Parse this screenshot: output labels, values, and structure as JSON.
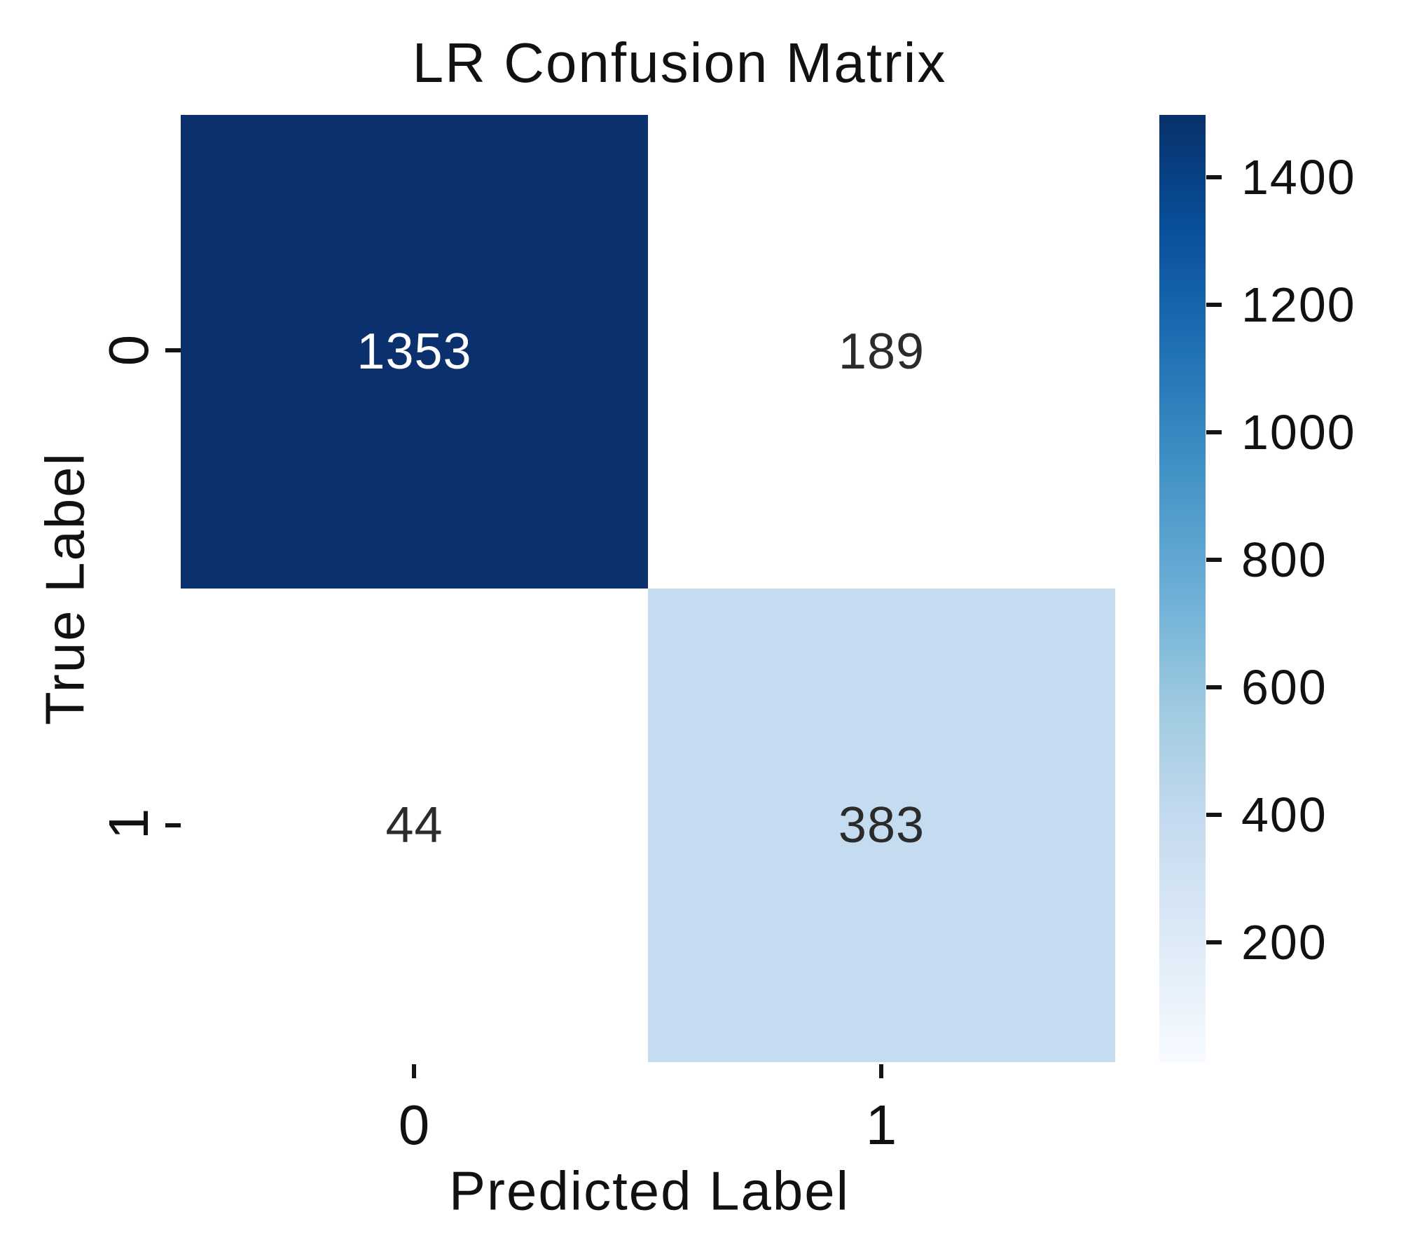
{
  "chart_data": {
    "type": "heatmap",
    "title": "LR Confusion Matrix",
    "xlabel": "Predicted Label",
    "ylabel": "True Label",
    "x_tick_labels": [
      "0",
      "1"
    ],
    "y_tick_labels": [
      "0",
      "1"
    ],
    "matrix": [
      [
        1353,
        189
      ],
      [
        44,
        383
      ]
    ],
    "colormap": "Blues",
    "grid": false,
    "legend_position": "none",
    "cells": [
      {
        "true_label": "0",
        "predicted_label": "0",
        "value": "1353",
        "bg": "#0a306e",
        "fg": "#ffffff"
      },
      {
        "true_label": "0",
        "predicted_label": "1",
        "value": "189",
        "bg": "#ffffff",
        "fg": "#2b2b2b"
      },
      {
        "true_label": "1",
        "predicted_label": "0",
        "value": "44",
        "bg": "#ffffff",
        "fg": "#2b2b2b"
      },
      {
        "true_label": "1",
        "predicted_label": "1",
        "value": "383",
        "bg": "#c5dbef",
        "fg": "#2b2b2b"
      }
    ],
    "x_ticks": [
      {
        "label": "0"
      },
      {
        "label": "1"
      }
    ],
    "y_ticks": [
      {
        "label": "0"
      },
      {
        "label": "1"
      }
    ],
    "colorbar": {
      "position": "right",
      "min": 0,
      "max": 1500,
      "ticks": [
        {
          "label": "1400"
        },
        {
          "label": "1200"
        },
        {
          "label": "1000"
        },
        {
          "label": "800"
        },
        {
          "label": "600"
        },
        {
          "label": "400"
        },
        {
          "label": "200"
        }
      ],
      "gradient_stops": [
        "#08306b",
        "#08519c",
        "#2171b5",
        "#4292c6",
        "#6baed6",
        "#9ecae1",
        "#c6dbef",
        "#deebf7",
        "#f7fbff"
      ]
    }
  }
}
